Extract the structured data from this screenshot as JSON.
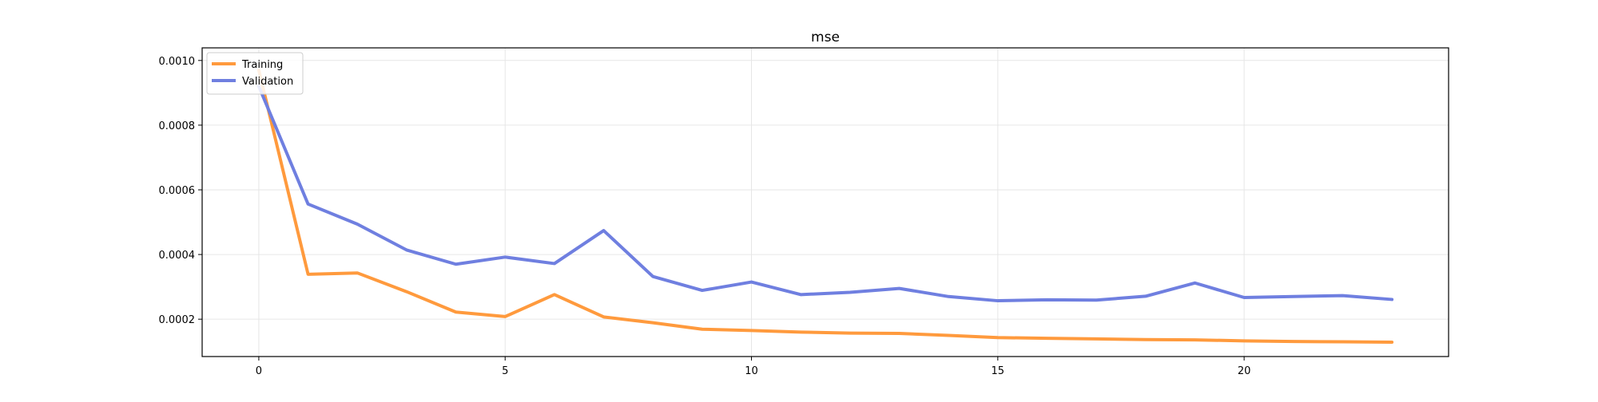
{
  "chart_data": {
    "type": "line",
    "title": "mse",
    "xlabel": "",
    "ylabel": "",
    "xlim": [
      -1.15,
      24.15
    ],
    "ylim": [
      8.45e-05,
      0.001039
    ],
    "x_ticks": [
      0,
      5,
      10,
      15,
      20
    ],
    "x_tick_labels": [
      "0",
      "5",
      "10",
      "15",
      "20"
    ],
    "y_ticks": [
      0.0002,
      0.0004,
      0.0006,
      0.0008,
      0.001
    ],
    "y_tick_labels": [
      "0.0002",
      "0.0004",
      "0.0006",
      "0.0008",
      "0.0010"
    ],
    "grid": true,
    "legend_position": "top-left",
    "x": [
      0,
      1,
      2,
      3,
      4,
      5,
      6,
      7,
      8,
      9,
      10,
      11,
      12,
      13,
      14,
      15,
      16,
      17,
      18,
      19,
      20,
      21,
      22,
      23
    ],
    "series": [
      {
        "name": "Training",
        "color": "#FF9A3D",
        "values": [
          0.00097,
          0.000339,
          0.000343,
          0.000285,
          0.000222,
          0.000208,
          0.000276,
          0.000207,
          0.000189,
          0.000169,
          0.000165,
          0.00016,
          0.000157,
          0.000156,
          0.00015,
          0.000143,
          0.000141,
          0.000139,
          0.000137,
          0.000136,
          0.000133,
          0.000131,
          0.00013,
          0.000129
        ]
      },
      {
        "name": "Validation",
        "color": "#6F7FE0",
        "values": [
          0.00092,
          0.000556,
          0.000494,
          0.000414,
          0.00037,
          0.000392,
          0.000372,
          0.000474,
          0.000332,
          0.000289,
          0.000315,
          0.000276,
          0.000283,
          0.000295,
          0.00027,
          0.000257,
          0.00026,
          0.000259,
          0.000271,
          0.000312,
          0.000267,
          0.00027,
          0.000273,
          0.000261
        ]
      }
    ]
  }
}
